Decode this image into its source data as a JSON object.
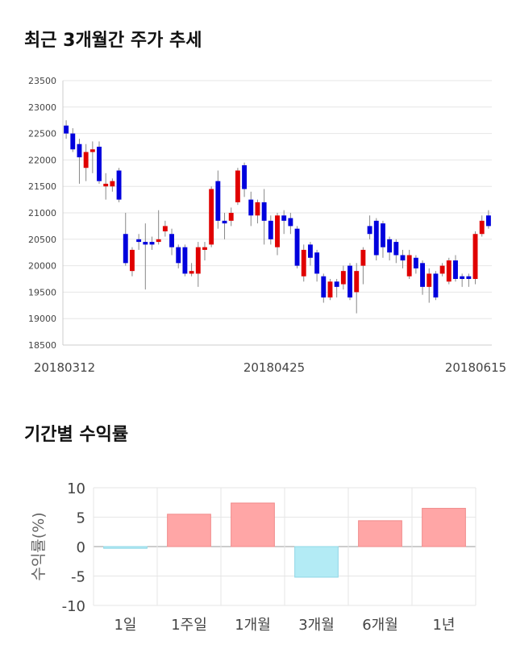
{
  "chart_data": [
    {
      "type": "candlestick",
      "title": "최근 3개월간 주가 추세",
      "ylim": [
        18500,
        23500
      ],
      "yticks": [
        18500,
        19000,
        19500,
        20000,
        20500,
        21000,
        21500,
        22000,
        22500,
        23000,
        23500
      ],
      "xtick_labels": [
        "20180312",
        "20180425",
        "20180615"
      ],
      "grid": true,
      "up_color": "#e00000",
      "down_color": "#0000dd",
      "candles": [
        [
          22650,
          22500,
          22750,
          22400
        ],
        [
          22500,
          22200,
          22600,
          22150
        ],
        [
          22300,
          22050,
          22400,
          21550
        ],
        [
          21850,
          22150,
          22300,
          21600
        ],
        [
          22150,
          22200,
          22350,
          21750
        ],
        [
          22250,
          21600,
          22350,
          21550
        ],
        [
          21500,
          21550,
          21750,
          21250
        ],
        [
          21500,
          21600,
          21650,
          21400
        ],
        [
          21800,
          21250,
          21850,
          21200
        ],
        [
          20600,
          20050,
          21000,
          20000
        ],
        [
          19900,
          20300,
          20350,
          19800
        ],
        [
          20500,
          20450,
          20600,
          20300
        ],
        [
          20450,
          20400,
          20800,
          19550
        ],
        [
          20450,
          20400,
          20550,
          20300
        ],
        [
          20450,
          20500,
          21050,
          20400
        ],
        [
          20650,
          20750,
          20850,
          20550
        ],
        [
          20600,
          20350,
          20700,
          20200
        ],
        [
          20350,
          20050,
          20400,
          19950
        ],
        [
          20350,
          19850,
          20400,
          19800
        ],
        [
          19850,
          19900,
          20050,
          19800
        ],
        [
          19850,
          20350,
          20450,
          19600
        ],
        [
          20300,
          20350,
          20450,
          20100
        ],
        [
          20400,
          21450,
          21500,
          20350
        ],
        [
          21600,
          20850,
          21800,
          20700
        ],
        [
          20850,
          20800,
          21000,
          20500
        ],
        [
          20850,
          21000,
          21100,
          20750
        ],
        [
          21200,
          21800,
          21850,
          21150
        ],
        [
          21900,
          21450,
          21950,
          21300
        ],
        [
          21250,
          20950,
          21400,
          20750
        ],
        [
          20950,
          21200,
          21250,
          20800
        ],
        [
          21200,
          20850,
          21450,
          20400
        ],
        [
          20850,
          20500,
          20950,
          20400
        ],
        [
          20350,
          20950,
          21000,
          20200
        ],
        [
          20950,
          20850,
          21050,
          20600
        ],
        [
          20900,
          20750,
          21000,
          20600
        ],
        [
          20700,
          20000,
          20750,
          19950
        ],
        [
          19800,
          20300,
          20400,
          19700
        ],
        [
          20400,
          20150,
          20450,
          20000
        ],
        [
          20250,
          19850,
          20300,
          19700
        ],
        [
          19800,
          19400,
          19850,
          19300
        ],
        [
          19400,
          19700,
          19750,
          19350
        ],
        [
          19700,
          19600,
          19750,
          19400
        ],
        [
          19650,
          19900,
          20000,
          19550
        ],
        [
          20000,
          19400,
          20050,
          19350
        ],
        [
          19500,
          19900,
          20050,
          19100
        ],
        [
          20000,
          20300,
          20350,
          19650
        ],
        [
          20750,
          20600,
          20950,
          20500
        ],
        [
          20850,
          20200,
          20900,
          20100
        ],
        [
          20800,
          20350,
          20850,
          20150
        ],
        [
          20500,
          20250,
          20550,
          20100
        ],
        [
          20450,
          20200,
          20500,
          20050
        ],
        [
          20200,
          20100,
          20300,
          19950
        ],
        [
          19800,
          20200,
          20300,
          19750
        ],
        [
          20150,
          19950,
          20200,
          19850
        ],
        [
          20050,
          19600,
          20100,
          19450
        ],
        [
          19600,
          19850,
          19950,
          19300
        ],
        [
          19850,
          19400,
          19900,
          19350
        ],
        [
          19850,
          20000,
          20050,
          19800
        ],
        [
          19700,
          20100,
          20150,
          19650
        ],
        [
          20100,
          19750,
          20200,
          19700
        ],
        [
          19800,
          19750,
          19850,
          19600
        ],
        [
          19800,
          19750,
          19850,
          19600
        ],
        [
          19750,
          20600,
          20650,
          19650
        ],
        [
          20600,
          20850,
          20950,
          20550
        ],
        [
          20950,
          20750,
          21050,
          20700
        ]
      ]
    },
    {
      "type": "bar",
      "title": "기간별 수익률",
      "ylabel": "수익률(%)",
      "categories": [
        "1일",
        "1주일",
        "1개월",
        "3개월",
        "6개월",
        "1년"
      ],
      "values": [
        -0.3,
        5.5,
        7.4,
        -5.2,
        4.4,
        6.5
      ],
      "ylim": [
        -10,
        10
      ],
      "yticks": [
        -10,
        -5,
        0,
        5,
        10
      ],
      "positive_color": "#ffa6a6",
      "negative_color": "#b3ebf5",
      "grid": true
    }
  ]
}
